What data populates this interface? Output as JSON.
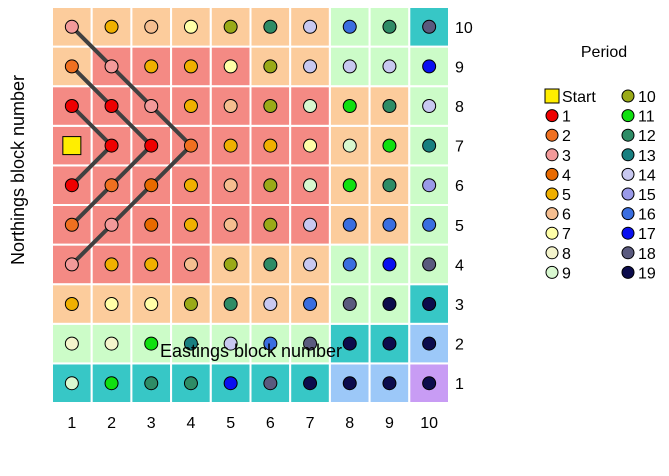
{
  "chart_data": {
    "type": "heatmap",
    "xlabel": "Eastings block number",
    "ylabel": "Northings block number",
    "x_ticks": [
      "1",
      "2",
      "3",
      "4",
      "5",
      "6",
      "7",
      "8",
      "9",
      "10"
    ],
    "y_ticks": [
      "1",
      "2",
      "3",
      "4",
      "5",
      "6",
      "7",
      "8",
      "9",
      "10"
    ],
    "legend_title": "Period",
    "period_colors": {
      "1": "#ee0000",
      "2": "#f07020",
      "3": "#f39a9a",
      "4": "#e86a00",
      "5": "#f0b000",
      "6": "#f5be90",
      "7": "#ffffa8",
      "8": "#f4f4cc",
      "9": "#d8f8d0",
      "10": "#9aaa18",
      "11": "#10e010",
      "12": "#2e8c66",
      "13": "#187f80",
      "14": "#c8c8f0",
      "15": "#9a9ae8",
      "16": "#3a6ee0",
      "17": "#0a10f0",
      "18": "#5a5a7e",
      "19": "#0c0c4c"
    },
    "start_color": "#ffee00",
    "zone_colors": {
      "red": "#f48a84",
      "peach": "#fccc9c",
      "lightgreen": "#ccfcc8",
      "teal": "#37c7c6",
      "lightblue": "#9cc8f8",
      "purple": "#c89cf4"
    },
    "background_zones": [
      [
        "teal",
        "teal",
        "teal",
        "teal",
        "teal",
        "teal",
        "teal",
        "lightblue",
        "lightblue",
        "purple"
      ],
      [
        "lightgreen",
        "lightgreen",
        "lightgreen",
        "lightgreen",
        "lightgreen",
        "lightgreen",
        "lightgreen",
        "teal",
        "teal",
        "lightblue"
      ],
      [
        "peach",
        "peach",
        "peach",
        "peach",
        "peach",
        "peach",
        "peach",
        "lightgreen",
        "lightgreen",
        "teal"
      ],
      [
        "red",
        "red",
        "red",
        "red",
        "peach",
        "peach",
        "peach",
        "lightgreen",
        "lightgreen",
        "lightgreen"
      ],
      [
        "red",
        "red",
        "red",
        "red",
        "red",
        "red",
        "red",
        "peach",
        "peach",
        "lightgreen"
      ],
      [
        "red",
        "red",
        "red",
        "red",
        "red",
        "red",
        "red",
        "peach",
        "peach",
        "lightgreen"
      ],
      [
        "red",
        "red",
        "red",
        "red",
        "red",
        "red",
        "red",
        "peach",
        "peach",
        "lightgreen"
      ],
      [
        "red",
        "red",
        "red",
        "red",
        "red",
        "red",
        "red",
        "peach",
        "peach",
        "lightgreen"
      ],
      [
        "peach",
        "red",
        "red",
        "red",
        "red",
        "peach",
        "peach",
        "lightgreen",
        "lightgreen",
        "lightgreen"
      ],
      [
        "peach",
        "peach",
        "peach",
        "peach",
        "peach",
        "peach",
        "peach",
        "lightgreen",
        "lightgreen",
        "teal"
      ]
    ],
    "point_periods": [
      [
        9,
        11,
        12,
        12,
        17,
        18,
        19,
        19,
        19,
        19
      ],
      [
        8,
        8,
        11,
        13,
        14,
        16,
        18,
        19,
        19,
        19
      ],
      [
        5,
        7,
        7,
        10,
        12,
        14,
        16,
        18,
        19,
        19
      ],
      [
        3,
        5,
        5,
        6,
        10,
        12,
        14,
        16,
        17,
        18
      ],
      [
        2,
        3,
        4,
        5,
        6,
        10,
        14,
        16,
        16,
        16
      ],
      [
        1,
        2,
        4,
        5,
        6,
        10,
        9,
        11,
        12,
        15
      ],
      [
        "S",
        1,
        1,
        2,
        5,
        5,
        7,
        9,
        11,
        13
      ],
      [
        1,
        1,
        3,
        5,
        6,
        10,
        9,
        11,
        12,
        14
      ],
      [
        2,
        3,
        5,
        5,
        7,
        10,
        14,
        14,
        14,
        17
      ],
      [
        3,
        5,
        6,
        7,
        10,
        12,
        14,
        16,
        12,
        18
      ]
    ],
    "path_segments": [
      [
        [
          1,
          4
        ],
        [
          4,
          7
        ]
      ],
      [
        [
          1,
          5
        ],
        [
          3,
          7
        ]
      ],
      [
        [
          1,
          6
        ],
        [
          2,
          7
        ]
      ],
      [
        [
          1,
          8
        ],
        [
          2,
          7
        ]
      ],
      [
        [
          1,
          9
        ],
        [
          3,
          7
        ]
      ],
      [
        [
          1,
          10
        ],
        [
          4,
          7
        ]
      ]
    ],
    "legend": [
      {
        "label": "Start",
        "key": "S"
      },
      {
        "label": "1",
        "key": "1"
      },
      {
        "label": "2",
        "key": "2"
      },
      {
        "label": "3",
        "key": "3"
      },
      {
        "label": "4",
        "key": "4"
      },
      {
        "label": "5",
        "key": "5"
      },
      {
        "label": "6",
        "key": "6"
      },
      {
        "label": "7",
        "key": "7"
      },
      {
        "label": "8",
        "key": "8"
      },
      {
        "label": "9",
        "key": "9"
      },
      {
        "label": "10",
        "key": "10"
      },
      {
        "label": "11",
        "key": "11"
      },
      {
        "label": "12",
        "key": "12"
      },
      {
        "label": "13",
        "key": "13"
      },
      {
        "label": "14",
        "key": "14"
      },
      {
        "label": "15",
        "key": "15"
      },
      {
        "label": "16",
        "key": "16"
      },
      {
        "label": "17",
        "key": "17"
      },
      {
        "label": "18",
        "key": "18"
      },
      {
        "label": "19",
        "key": "19"
      }
    ]
  }
}
